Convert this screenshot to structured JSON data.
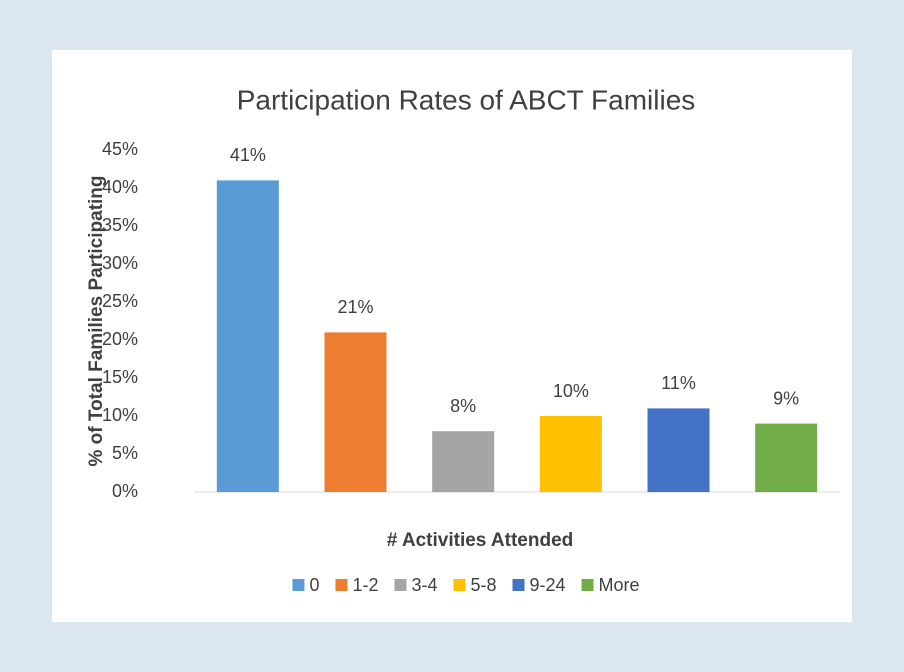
{
  "chart_data": {
    "type": "bar",
    "title": "Participation Rates of ABCT Families",
    "x_label": "# Activities Attended",
    "y_label": "% of Total Families Participating",
    "categories": [
      "0",
      "1-2",
      "3-4",
      "5-8",
      "9-24",
      "More"
    ],
    "values": [
      41,
      21,
      8,
      10,
      11,
      9
    ],
    "value_labels": [
      "41%",
      "21%",
      "8%",
      "10%",
      "11%",
      "9%"
    ],
    "colors": [
      "#5b9bd5",
      "#ed7d31",
      "#a5a5a5",
      "#ffc000",
      "#4472c4",
      "#70ad47"
    ],
    "ylim": [
      0,
      45
    ],
    "yticks": [
      {
        "value": 0,
        "label": "0%"
      },
      {
        "value": 5,
        "label": "5%"
      },
      {
        "value": 10,
        "label": "10%"
      },
      {
        "value": 15,
        "label": "15%"
      },
      {
        "value": 20,
        "label": "20%"
      },
      {
        "value": 25,
        "label": "25%"
      },
      {
        "value": 30,
        "label": "30%"
      },
      {
        "value": 35,
        "label": "35%"
      },
      {
        "value": 40,
        "label": "40%"
      },
      {
        "value": 45,
        "label": "45%"
      }
    ],
    "legend": "bottom"
  }
}
